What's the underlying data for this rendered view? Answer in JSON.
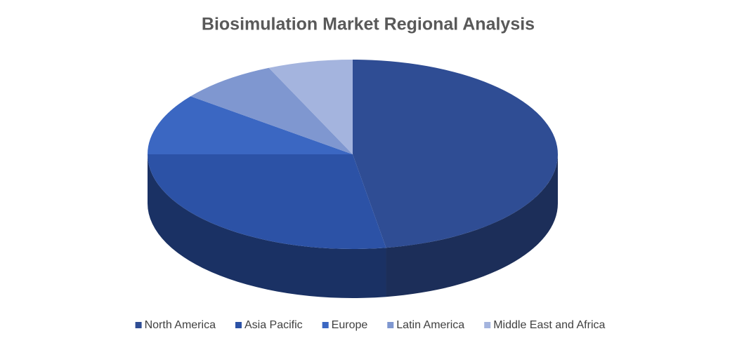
{
  "chart_data": {
    "type": "pie",
    "title": "Biosimulation Market Regional Analysis",
    "categories": [
      "North America",
      "Asia Pacific",
      "Europe",
      "Latin America",
      "Middle East and Africa"
    ],
    "values": [
      47.4,
      27.6,
      10.5,
      7.8,
      6.7
    ],
    "colors": [
      "#2f4d94",
      "#2c52a6",
      "#3b67c2",
      "#7f97d0",
      "#a4b4de"
    ],
    "legend": "bottom"
  }
}
